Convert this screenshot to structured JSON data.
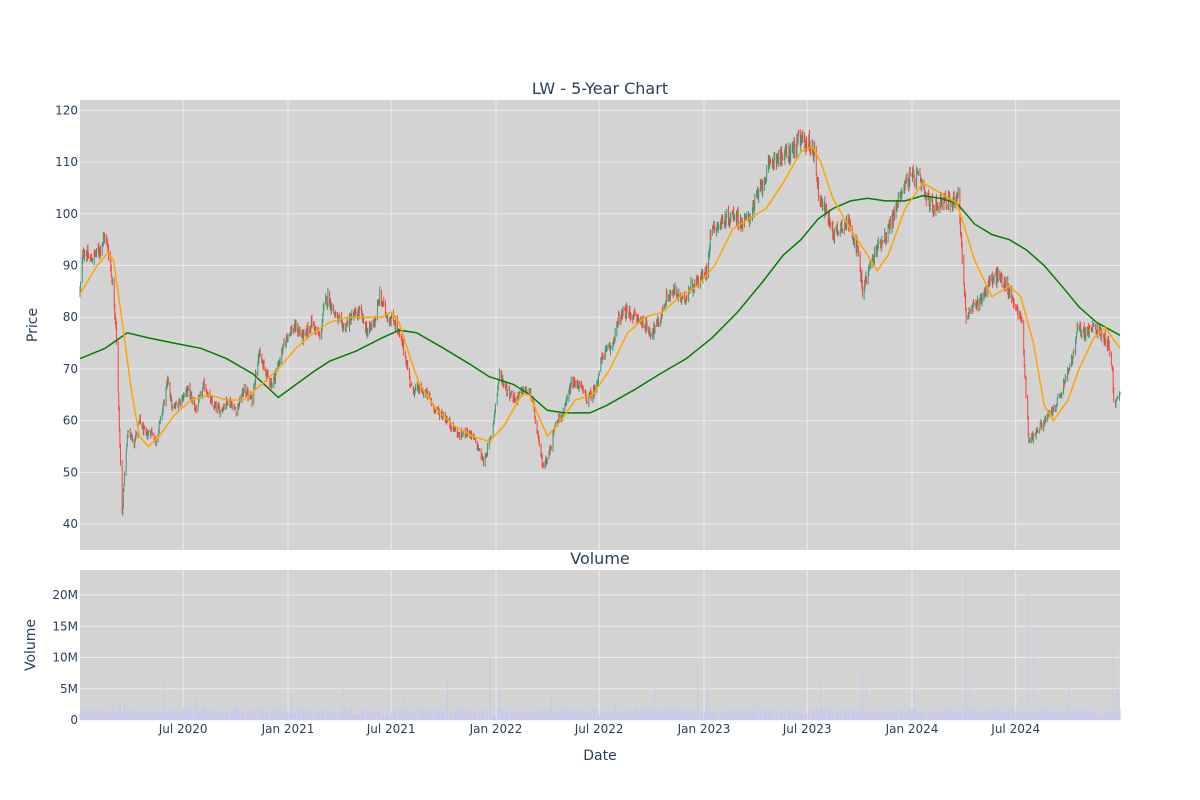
{
  "chart_data": [
    {
      "type": "candlestick",
      "title": "LW - 5-Year Chart",
      "xlabel": "",
      "ylabel": "Price",
      "ylim": [
        35,
        122
      ],
      "yticks": [
        40,
        50,
        60,
        70,
        80,
        90,
        100,
        110,
        120
      ],
      "x_range": [
        "2020-01-02",
        "2024-12-31"
      ],
      "background": "#d3d3d3",
      "gridlines": true,
      "colors": {
        "increasing": "#3d9970",
        "decreasing": "#ff4136",
        "ma_short": "#ffa500",
        "ma_long": "#008000"
      },
      "price_path": [
        [
          "2020-01-02",
          85
        ],
        [
          "2020-01-08",
          93
        ],
        [
          "2020-01-20",
          91
        ],
        [
          "2020-02-05",
          93
        ],
        [
          "2020-02-15",
          96
        ],
        [
          "2020-02-24",
          91
        ],
        [
          "2020-03-05",
          79
        ],
        [
          "2020-03-12",
          55
        ],
        [
          "2020-03-16",
          42
        ],
        [
          "2020-03-19",
          48
        ],
        [
          "2020-03-26",
          58
        ],
        [
          "2020-04-06",
          56
        ],
        [
          "2020-04-16",
          60
        ],
        [
          "2020-04-26",
          57
        ],
        [
          "2020-05-06",
          58
        ],
        [
          "2020-05-14",
          56
        ],
        [
          "2020-05-22",
          60
        ],
        [
          "2020-06-05",
          68
        ],
        [
          "2020-06-12",
          62
        ],
        [
          "2020-06-26",
          64
        ],
        [
          "2020-07-10",
          66
        ],
        [
          "2020-07-24",
          62
        ],
        [
          "2020-08-07",
          67
        ],
        [
          "2020-08-21",
          63
        ],
        [
          "2020-09-04",
          62
        ],
        [
          "2020-09-18",
          64
        ],
        [
          "2020-10-02",
          62
        ],
        [
          "2020-10-16",
          66
        ],
        [
          "2020-10-30",
          64
        ],
        [
          "2020-11-10",
          73
        ],
        [
          "2020-11-20",
          70
        ],
        [
          "2020-12-04",
          67
        ],
        [
          "2020-12-18",
          72
        ],
        [
          "2021-01-01",
          77
        ],
        [
          "2021-01-15",
          78
        ],
        [
          "2021-01-29",
          76
        ],
        [
          "2021-02-12",
          79
        ],
        [
          "2021-02-26",
          76
        ],
        [
          "2021-03-05",
          82
        ],
        [
          "2021-03-12",
          84
        ],
        [
          "2021-03-26",
          80
        ],
        [
          "2021-04-09",
          78
        ],
        [
          "2021-04-23",
          80
        ],
        [
          "2021-05-07",
          81
        ],
        [
          "2021-05-21",
          77
        ],
        [
          "2021-06-04",
          80
        ],
        [
          "2021-06-11",
          84
        ],
        [
          "2021-06-25",
          80
        ],
        [
          "2021-07-09",
          79
        ],
        [
          "2021-07-16",
          76
        ],
        [
          "2021-07-23",
          74
        ],
        [
          "2021-08-06",
          66
        ],
        [
          "2021-08-20",
          66
        ],
        [
          "2021-09-03",
          65
        ],
        [
          "2021-09-17",
          62
        ],
        [
          "2021-10-01",
          61
        ],
        [
          "2021-10-15",
          59
        ],
        [
          "2021-10-29",
          57
        ],
        [
          "2021-11-12",
          58
        ],
        [
          "2021-11-26",
          56
        ],
        [
          "2021-12-10",
          52
        ],
        [
          "2021-12-24",
          57
        ],
        [
          "2022-01-07",
          69
        ],
        [
          "2022-01-21",
          66
        ],
        [
          "2022-02-04",
          64
        ],
        [
          "2022-02-18",
          66
        ],
        [
          "2022-03-04",
          65
        ],
        [
          "2022-03-18",
          55
        ],
        [
          "2022-03-25",
          51
        ],
        [
          "2022-04-08",
          55
        ],
        [
          "2022-04-15",
          60
        ],
        [
          "2022-04-29",
          61
        ],
        [
          "2022-05-13",
          67
        ],
        [
          "2022-05-27",
          67
        ],
        [
          "2022-06-10",
          64
        ],
        [
          "2022-06-24",
          66
        ],
        [
          "2022-07-08",
          73
        ],
        [
          "2022-07-22",
          74
        ],
        [
          "2022-08-05",
          80
        ],
        [
          "2022-08-19",
          81
        ],
        [
          "2022-09-02",
          80
        ],
        [
          "2022-09-16",
          79
        ],
        [
          "2022-09-30",
          77
        ],
        [
          "2022-10-14",
          79
        ],
        [
          "2022-10-28",
          84
        ],
        [
          "2022-11-11",
          85
        ],
        [
          "2022-11-25",
          83
        ],
        [
          "2022-12-09",
          86
        ],
        [
          "2022-12-23",
          87
        ],
        [
          "2023-01-06",
          89
        ],
        [
          "2023-01-13",
          97
        ],
        [
          "2023-01-27",
          98
        ],
        [
          "2023-02-10",
          99
        ],
        [
          "2023-02-24",
          100
        ],
        [
          "2023-03-10",
          98
        ],
        [
          "2023-03-24",
          100
        ],
        [
          "2023-04-07",
          104
        ],
        [
          "2023-04-21",
          108
        ],
        [
          "2023-05-05",
          111
        ],
        [
          "2023-05-19",
          111
        ],
        [
          "2023-06-02",
          112
        ],
        [
          "2023-06-16",
          114
        ],
        [
          "2023-06-30",
          114
        ],
        [
          "2023-07-14",
          112
        ],
        [
          "2023-07-21",
          104
        ],
        [
          "2023-08-04",
          100
        ],
        [
          "2023-08-18",
          96
        ],
        [
          "2023-09-01",
          98
        ],
        [
          "2023-09-15",
          98
        ],
        [
          "2023-09-29",
          92
        ],
        [
          "2023-10-06",
          85
        ],
        [
          "2023-10-20",
          90
        ],
        [
          "2023-11-03",
          94
        ],
        [
          "2023-11-17",
          96
        ],
        [
          "2023-12-01",
          100
        ],
        [
          "2023-12-15",
          105
        ],
        [
          "2023-12-29",
          107
        ],
        [
          "2024-01-12",
          107
        ],
        [
          "2024-01-26",
          103
        ],
        [
          "2024-02-09",
          101
        ],
        [
          "2024-02-23",
          103
        ],
        [
          "2024-03-08",
          102
        ],
        [
          "2024-03-22",
          104
        ],
        [
          "2024-04-05",
          80
        ],
        [
          "2024-04-19",
          82
        ],
        [
          "2024-05-03",
          84
        ],
        [
          "2024-05-17",
          87
        ],
        [
          "2024-05-31",
          88
        ],
        [
          "2024-06-14",
          86
        ],
        [
          "2024-06-28",
          83
        ],
        [
          "2024-07-12",
          79
        ],
        [
          "2024-07-24",
          56
        ],
        [
          "2024-08-07",
          58
        ],
        [
          "2024-08-21",
          60
        ],
        [
          "2024-09-04",
          62
        ],
        [
          "2024-09-18",
          65
        ],
        [
          "2024-10-02",
          70
        ],
        [
          "2024-10-09",
          72
        ],
        [
          "2024-10-18",
          78
        ],
        [
          "2024-11-01",
          77
        ],
        [
          "2024-11-15",
          78
        ],
        [
          "2024-11-29",
          77
        ],
        [
          "2024-12-10",
          75
        ],
        [
          "2024-12-18",
          70
        ],
        [
          "2024-12-20",
          63
        ],
        [
          "2024-12-31",
          65
        ]
      ],
      "moving_average_short": [
        [
          "2020-01-02",
          84.5
        ],
        [
          "2020-02-01",
          90
        ],
        [
          "2020-02-20",
          92.5
        ],
        [
          "2020-03-01",
          91
        ],
        [
          "2020-03-15",
          80
        ],
        [
          "2020-04-01",
          66
        ],
        [
          "2020-04-15",
          57
        ],
        [
          "2020-05-01",
          55
        ],
        [
          "2020-05-20",
          57
        ],
        [
          "2020-06-15",
          61
        ],
        [
          "2020-07-15",
          64
        ],
        [
          "2020-08-15",
          65
        ],
        [
          "2020-09-15",
          64
        ],
        [
          "2020-10-15",
          64
        ],
        [
          "2020-11-15",
          67
        ],
        [
          "2020-12-15",
          70
        ],
        [
          "2021-01-15",
          74
        ],
        [
          "2021-02-15",
          77
        ],
        [
          "2021-03-15",
          79
        ],
        [
          "2021-04-15",
          80
        ],
        [
          "2021-05-15",
          80
        ],
        [
          "2021-06-15",
          80
        ],
        [
          "2021-07-01",
          81
        ],
        [
          "2021-07-15",
          79
        ],
        [
          "2021-08-01",
          73
        ],
        [
          "2021-08-20",
          67
        ],
        [
          "2021-09-20",
          62
        ],
        [
          "2021-10-20",
          59
        ],
        [
          "2021-11-20",
          57
        ],
        [
          "2021-12-20",
          56
        ],
        [
          "2022-01-15",
          59
        ],
        [
          "2022-02-15",
          65
        ],
        [
          "2022-03-01",
          65
        ],
        [
          "2022-04-01",
          57
        ],
        [
          "2022-04-25",
          60
        ],
        [
          "2022-05-20",
          64
        ],
        [
          "2022-06-20",
          65
        ],
        [
          "2022-07-20",
          70
        ],
        [
          "2022-08-20",
          77
        ],
        [
          "2022-09-20",
          80
        ],
        [
          "2022-10-20",
          81
        ],
        [
          "2022-11-20",
          84
        ],
        [
          "2022-12-20",
          86
        ],
        [
          "2023-01-20",
          90
        ],
        [
          "2023-02-20",
          97
        ],
        [
          "2023-03-20",
          99
        ],
        [
          "2023-04-20",
          101
        ],
        [
          "2023-05-20",
          106
        ],
        [
          "2023-06-20",
          112
        ],
        [
          "2023-07-10",
          113
        ],
        [
          "2023-07-25",
          110
        ],
        [
          "2023-08-15",
          103
        ],
        [
          "2023-09-15",
          97
        ],
        [
          "2023-10-15",
          92
        ],
        [
          "2023-11-01",
          89
        ],
        [
          "2023-11-20",
          92
        ],
        [
          "2023-12-20",
          101
        ],
        [
          "2024-01-20",
          106
        ],
        [
          "2024-02-20",
          104
        ],
        [
          "2024-03-20",
          102
        ],
        [
          "2024-04-20",
          91
        ],
        [
          "2024-05-20",
          84
        ],
        [
          "2024-06-20",
          86
        ],
        [
          "2024-07-10",
          84
        ],
        [
          "2024-08-01",
          75
        ],
        [
          "2024-08-20",
          63
        ],
        [
          "2024-09-05",
          60
        ],
        [
          "2024-10-01",
          64
        ],
        [
          "2024-10-20",
          70
        ],
        [
          "2024-11-15",
          76
        ],
        [
          "2024-12-05",
          78
        ],
        [
          "2024-12-31",
          74
        ]
      ],
      "moving_average_long": [
        [
          "2020-01-02",
          72
        ],
        [
          "2020-02-15",
          74
        ],
        [
          "2020-03-25",
          77
        ],
        [
          "2020-05-01",
          76
        ],
        [
          "2020-06-15",
          75
        ],
        [
          "2020-08-01",
          74
        ],
        [
          "2020-09-15",
          72
        ],
        [
          "2020-11-01",
          69
        ],
        [
          "2020-12-15",
          64.5
        ],
        [
          "2021-01-15",
          67
        ],
        [
          "2021-02-15",
          69.5
        ],
        [
          "2021-03-15",
          71.5
        ],
        [
          "2021-05-01",
          73.5
        ],
        [
          "2021-06-15",
          76
        ],
        [
          "2021-07-15",
          77.5
        ],
        [
          "2021-08-15",
          77
        ],
        [
          "2021-10-01",
          74
        ],
        [
          "2021-11-15",
          71
        ],
        [
          "2021-12-20",
          68.5
        ],
        [
          "2022-02-01",
          67
        ],
        [
          "2022-03-01",
          65
        ],
        [
          "2022-04-01",
          62
        ],
        [
          "2022-05-01",
          61.5
        ],
        [
          "2022-06-15",
          61.5
        ],
        [
          "2022-07-15",
          63
        ],
        [
          "2022-09-01",
          66
        ],
        [
          "2022-10-15",
          69
        ],
        [
          "2022-12-01",
          72
        ],
        [
          "2023-01-15",
          76
        ],
        [
          "2023-03-01",
          81
        ],
        [
          "2023-04-15",
          87
        ],
        [
          "2023-05-20",
          92
        ],
        [
          "2023-06-20",
          95
        ],
        [
          "2023-07-20",
          99
        ],
        [
          "2023-08-15",
          101
        ],
        [
          "2023-09-15",
          102.5
        ],
        [
          "2023-10-15",
          103
        ],
        [
          "2023-11-15",
          102.5
        ],
        [
          "2023-12-20",
          102.5
        ],
        [
          "2024-01-20",
          103.5
        ],
        [
          "2024-02-20",
          103
        ],
        [
          "2024-03-20",
          102
        ],
        [
          "2024-04-20",
          98
        ],
        [
          "2024-05-20",
          96
        ],
        [
          "2024-06-20",
          95
        ],
        [
          "2024-07-20",
          93
        ],
        [
          "2024-08-20",
          90
        ],
        [
          "2024-09-20",
          86
        ],
        [
          "2024-10-20",
          82
        ],
        [
          "2024-11-20",
          79
        ],
        [
          "2024-12-31",
          76.5
        ]
      ]
    },
    {
      "type": "bar",
      "title": "Volume",
      "xlabel": "Date",
      "ylabel": "Volume",
      "ylim": [
        0,
        24000000
      ],
      "yticks": [
        0,
        5000000,
        10000000,
        15000000,
        20000000
      ],
      "ytick_labels": [
        "0",
        "5M",
        "10M",
        "15M",
        "20M"
      ],
      "xticks": [
        "2020-07-01",
        "2021-01-01",
        "2021-07-01",
        "2022-01-01",
        "2022-07-01",
        "2023-01-01",
        "2023-07-01",
        "2024-01-01",
        "2024-07-01"
      ],
      "xtick_labels": [
        "Jul 2020",
        "Jan 2021",
        "Jul 2021",
        "Jan 2022",
        "Jul 2022",
        "Jan 2023",
        "Jul 2023",
        "Jan 2024",
        "Jul 2024"
      ],
      "background": "#d3d3d3",
      "bar_color": "#c8c8f0",
      "baseline_volume": 1200000,
      "spikes": [
        [
          "2020-02-28",
          2800000
        ],
        [
          "2020-03-13",
          3200000
        ],
        [
          "2020-03-20",
          2600000
        ],
        [
          "2020-05-29",
          6800000
        ],
        [
          "2020-07-24",
          3400000
        ],
        [
          "2020-10-02",
          2400000
        ],
        [
          "2021-01-08",
          3200000
        ],
        [
          "2021-04-09",
          5200000
        ],
        [
          "2021-07-23",
          4600000
        ],
        [
          "2021-10-08",
          6400000
        ],
        [
          "2021-12-22",
          10200000
        ],
        [
          "2022-01-07",
          5200000
        ],
        [
          "2022-04-08",
          3800000
        ],
        [
          "2022-07-29",
          3200000
        ],
        [
          "2022-10-07",
          5200000
        ],
        [
          "2022-12-21",
          8200000
        ],
        [
          "2023-01-06",
          5400000
        ],
        [
          "2023-04-06",
          3800000
        ],
        [
          "2023-07-25",
          6400000
        ],
        [
          "2023-10-06",
          8400000
        ],
        [
          "2023-10-13",
          5200000
        ],
        [
          "2024-01-05",
          5200000
        ],
        [
          "2024-04-04",
          23500000
        ],
        [
          "2024-04-12",
          5400000
        ],
        [
          "2024-07-24",
          21500000
        ],
        [
          "2024-08-02",
          14500000
        ],
        [
          "2024-10-03",
          6400000
        ],
        [
          "2024-12-19",
          12600000
        ],
        [
          "2024-12-27",
          5000000
        ]
      ]
    }
  ]
}
